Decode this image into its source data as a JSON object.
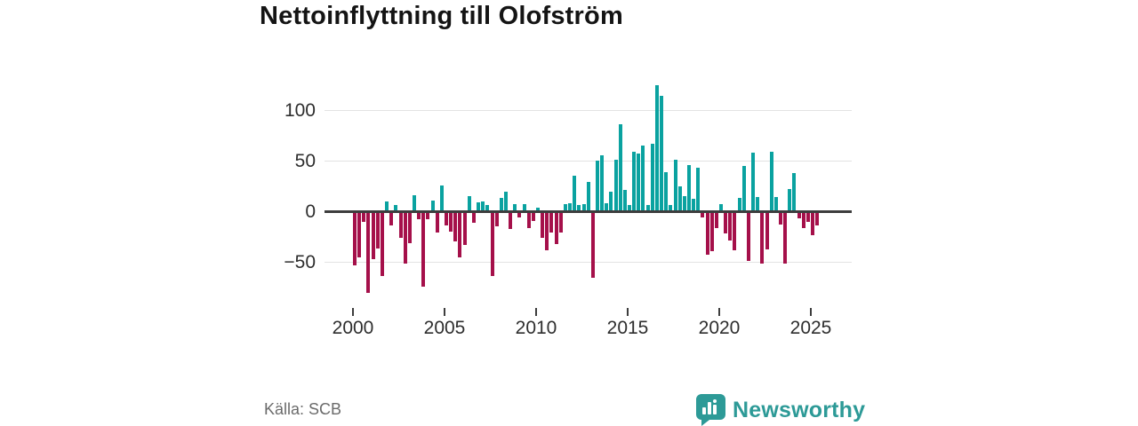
{
  "header": {
    "title": "Nettoinflyttning till Olofström"
  },
  "footer": {
    "source": "Källa: SCB",
    "brand": "Newsworthy"
  },
  "colors": {
    "positive": "#0aa2a0",
    "negative": "#a5104a",
    "axis": "#3d3d3d",
    "grid": "#e3e3e3",
    "brand_teal": "#2d9a97"
  },
  "icons": {
    "brand_icon": "bar-chart-speech-bubble"
  },
  "chart_data": {
    "type": "bar",
    "title": "Nettoinflyttning till Olofström",
    "xlabel": "",
    "ylabel": "",
    "frequency": "quarterly",
    "start": "2000Q1",
    "end": "2025Q2",
    "ylim": [
      -85,
      130
    ],
    "grid": "horizontal",
    "y_ticks": [
      100,
      50,
      0,
      -50
    ],
    "y_tick_labels": [
      "100",
      "50",
      "0",
      "−50"
    ],
    "x_ticks": [
      2000,
      2005,
      2010,
      2015,
      2020,
      2025
    ],
    "x_tick_labels": [
      "2000",
      "2005",
      "2010",
      "2015",
      "2020",
      "2025"
    ],
    "values": [
      -52,
      -44,
      -9,
      -79,
      -46,
      -35,
      -62,
      9,
      -12,
      5,
      -25,
      -50,
      -30,
      15,
      -6,
      -73,
      -6,
      10,
      -19,
      25,
      -12,
      -18,
      -28,
      -44,
      -32,
      14,
      -10,
      8,
      9,
      5,
      -62,
      -13,
      12,
      18,
      -16,
      6,
      -4,
      6,
      -15,
      -8,
      3,
      -25,
      -37,
      -19,
      -31,
      -19,
      6,
      7,
      34,
      5,
      6,
      28,
      -64,
      49,
      54,
      7,
      18,
      50,
      85,
      20,
      5,
      58,
      56,
      64,
      5,
      66,
      124,
      113,
      38,
      5,
      50,
      24,
      14,
      45,
      11,
      42,
      -4,
      -41,
      -38,
      -15,
      6,
      -20,
      -27,
      -37,
      12,
      44,
      -47,
      57,
      13,
      -50,
      -36,
      58,
      13,
      -11,
      -50,
      21,
      37,
      -5,
      -15,
      -9,
      -22,
      -12
    ]
  }
}
